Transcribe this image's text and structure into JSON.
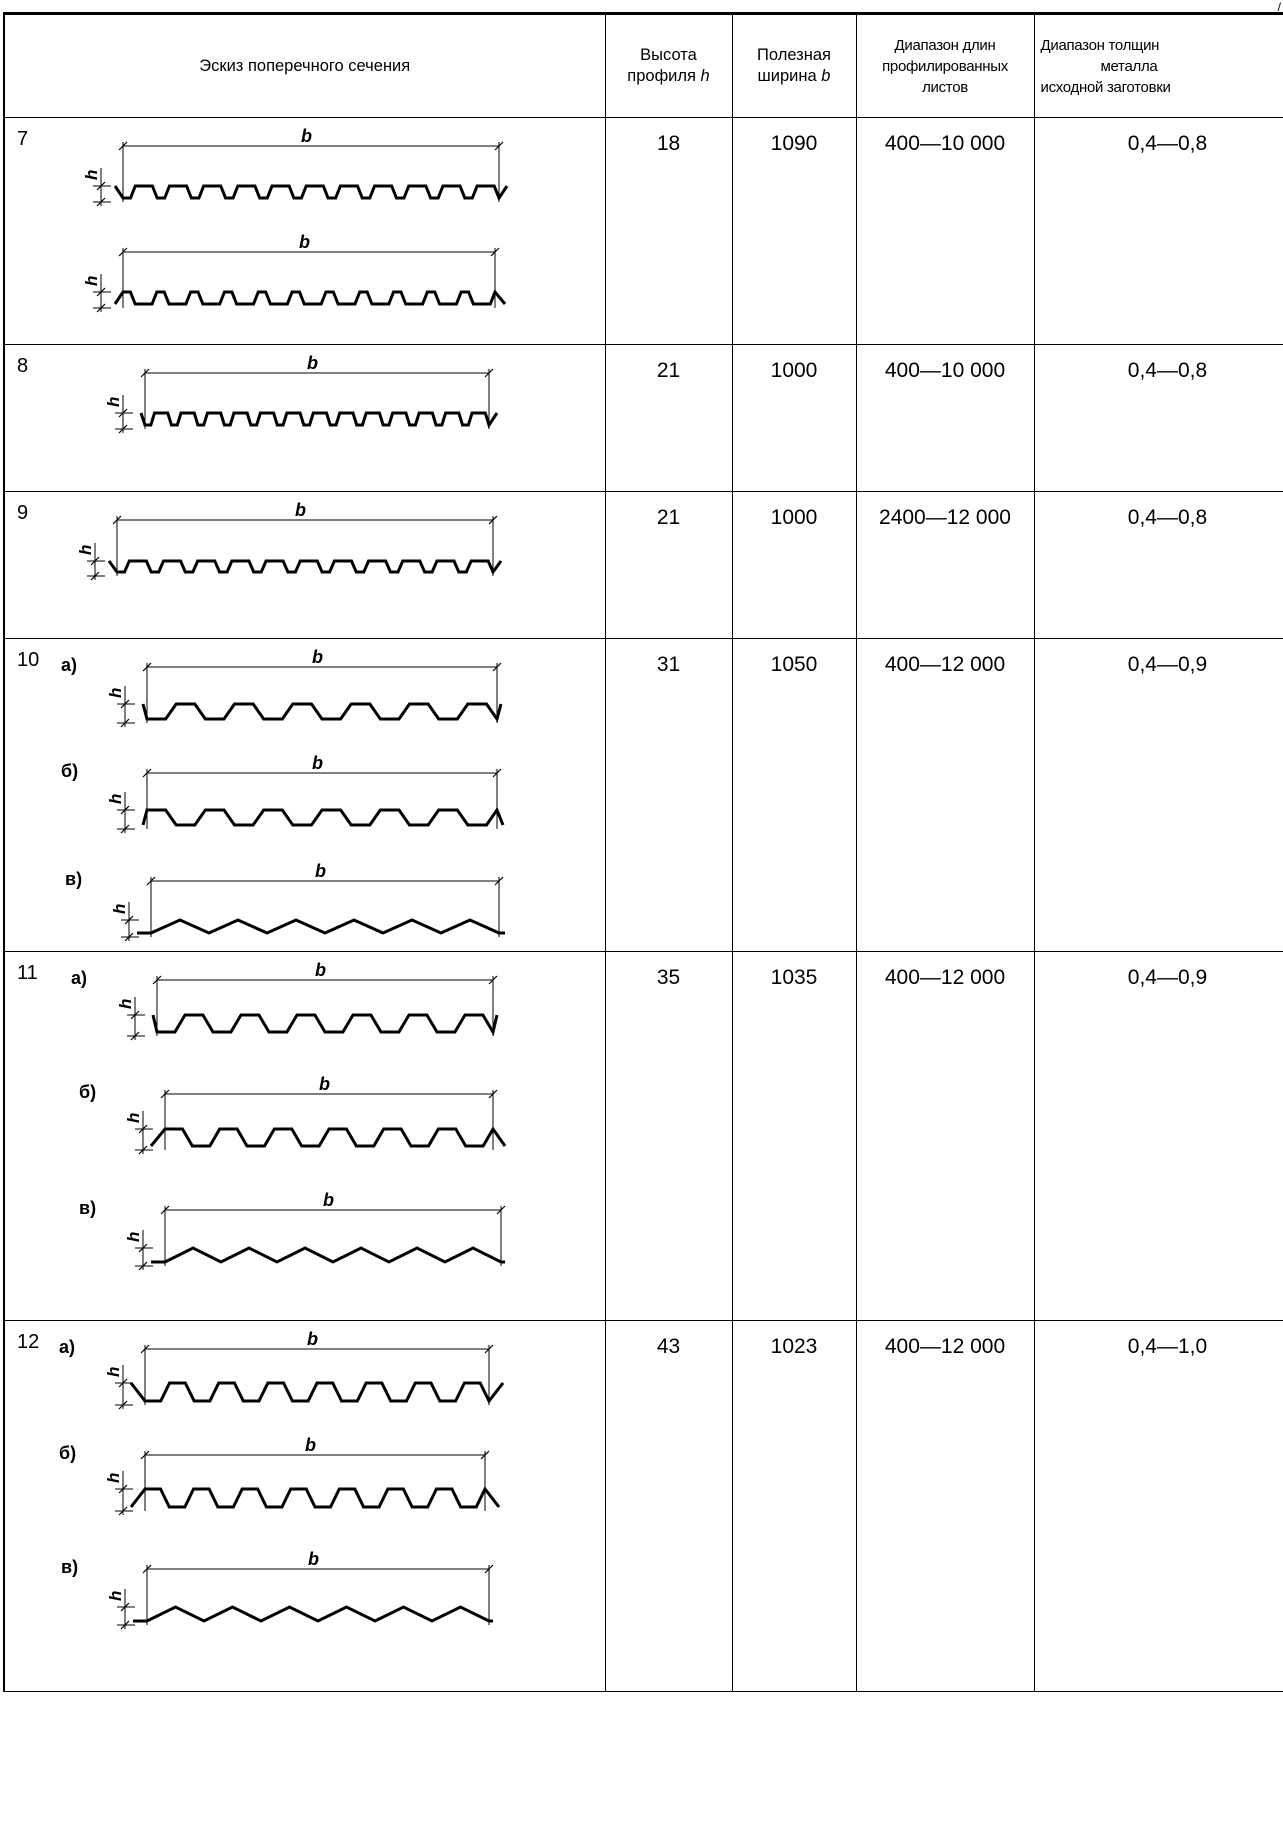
{
  "header": {
    "col_sketch": "Эскиз поперечного сечения",
    "col_height_1": "Высота",
    "col_height_2": "профиля",
    "col_height_var": "h",
    "col_width_1": "Полезная",
    "col_width_2": "ширина",
    "col_width_var": "b",
    "col_length_1": "Диапазон длин",
    "col_length_2": "профилированных",
    "col_length_3": "листов",
    "col_thick_1": "Диапазон толщин",
    "col_thick_2": "металла",
    "col_thick_3": "исходной заготовки"
  },
  "labels": {
    "b": "b",
    "h": "h",
    "a": "а)",
    "b_var": "б)",
    "v": "в)"
  },
  "rows": [
    {
      "num": "7",
      "height": "18",
      "width": "1090",
      "length": "400—10 000",
      "thickness": "0,4—0,8"
    },
    {
      "num": "8",
      "height": "21",
      "width": "1000",
      "length": "400—10 000",
      "thickness": "0,4—0,8"
    },
    {
      "num": "9",
      "height": "21",
      "width": "1000",
      "length": "2400—12 000",
      "thickness": "0,4—0,8"
    },
    {
      "num": "10",
      "height": "31",
      "width": "1050",
      "length": "400—12 000",
      "thickness": "0,4—0,9"
    },
    {
      "num": "11",
      "height": "35",
      "width": "1035",
      "length": "400—12 000",
      "thickness": "0,4—0,9"
    },
    {
      "num": "12",
      "height": "43",
      "width": "1023",
      "length": "400—12 000",
      "thickness": "0,4—1,0"
    }
  ]
}
